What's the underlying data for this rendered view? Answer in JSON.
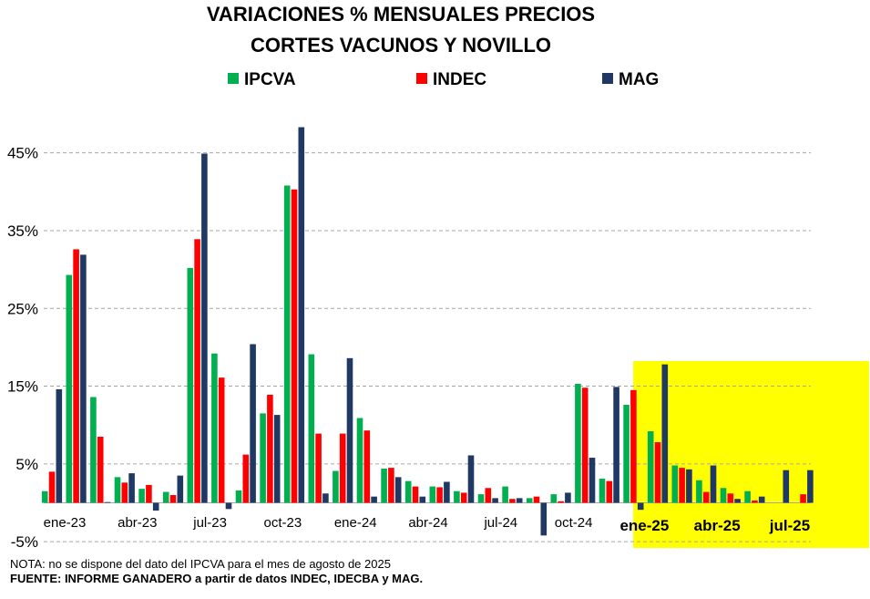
{
  "chart_data": {
    "type": "bar",
    "title_lines": [
      "VARIACIONES  % MENSUALES  PRECIOS",
      "CORTES VACUNOS Y NOVILLO"
    ],
    "categories": [
      "ene-23",
      "feb-23",
      "mar-23",
      "abr-23",
      "may-23",
      "jun-23",
      "jul-23",
      "ago-23",
      "sep-23",
      "oct-23",
      "nov-23",
      "dic-23",
      "ene-24",
      "feb-24",
      "mar-24",
      "abr-24",
      "may-24",
      "jun-24",
      "jul-24",
      "ago-24",
      "sep-24",
      "oct-24",
      "nov-24",
      "dic-24",
      "ene-25",
      "feb-25",
      "mar-25",
      "abr-25",
      "may-25",
      "jun-25",
      "jul-25",
      "ago-25"
    ],
    "tick_labels": [
      {
        "index": 0,
        "label": "ene-23"
      },
      {
        "index": 3,
        "label": "abr-23"
      },
      {
        "index": 6,
        "label": "jul-23"
      },
      {
        "index": 9,
        "label": "oct-23"
      },
      {
        "index": 12,
        "label": "ene-24"
      },
      {
        "index": 15,
        "label": "abr-24"
      },
      {
        "index": 18,
        "label": "jul-24"
      },
      {
        "index": 21,
        "label": "oct-24"
      },
      {
        "index": 24,
        "label": "ene-25"
      },
      {
        "index": 27,
        "label": "abr-25"
      },
      {
        "index": 30,
        "label": "jul-25"
      }
    ],
    "series": [
      {
        "name": "IPCVA",
        "color": "#00b050",
        "values": [
          1.5,
          29.3,
          13.6,
          3.3,
          1.8,
          1.4,
          30.2,
          19.2,
          1.6,
          11.5,
          40.8,
          19.1,
          4.1,
          10.9,
          4.4,
          2.8,
          2.1,
          1.5,
          1.1,
          2.1,
          0.6,
          1.1,
          15.3,
          3.1,
          12.6,
          9.2,
          4.8,
          2.9,
          1.9,
          1.5,
          null,
          null
        ]
      },
      {
        "name": "INDEC",
        "color": "#ff0000",
        "values": [
          4.0,
          32.6,
          8.5,
          2.6,
          2.3,
          1.0,
          33.9,
          16.1,
          6.2,
          13.9,
          40.3,
          8.9,
          8.9,
          9.3,
          4.5,
          2.1,
          2.0,
          1.3,
          1.9,
          0.5,
          0.8,
          0.2,
          14.8,
          2.8,
          14.5,
          7.8,
          4.5,
          1.4,
          1.2,
          0.3,
          null,
          1.1
        ]
      },
      {
        "name": "MAG",
        "color": "#1f3864",
        "values": [
          14.6,
          31.9,
          0.1,
          3.8,
          -1.0,
          3.5,
          44.9,
          -0.8,
          20.4,
          11.3,
          48.3,
          1.2,
          18.6,
          0.8,
          3.3,
          0.8,
          2.7,
          6.1,
          0.6,
          0.6,
          -4.2,
          1.3,
          5.8,
          14.9,
          -0.9,
          17.8,
          4.3,
          4.8,
          0.5,
          0.8,
          4.2,
          4.2
        ]
      }
    ],
    "y_ticks": [
      -5,
      5,
      15,
      25,
      35,
      45
    ],
    "y_tick_suffix": "%",
    "ylim": [
      -5.5,
      49
    ],
    "grid": true,
    "legend_position": "top",
    "highlight": {
      "from_index": 24,
      "to_index": 31,
      "color": "#ffff00"
    }
  },
  "footer": {
    "note": "NOTA: no se dispone del dato del IPCVA para el mes de agosto de 2025",
    "source": "FUENTE: INFORME GANADERO a partir de datos INDEC, IDECBA y MAG."
  }
}
